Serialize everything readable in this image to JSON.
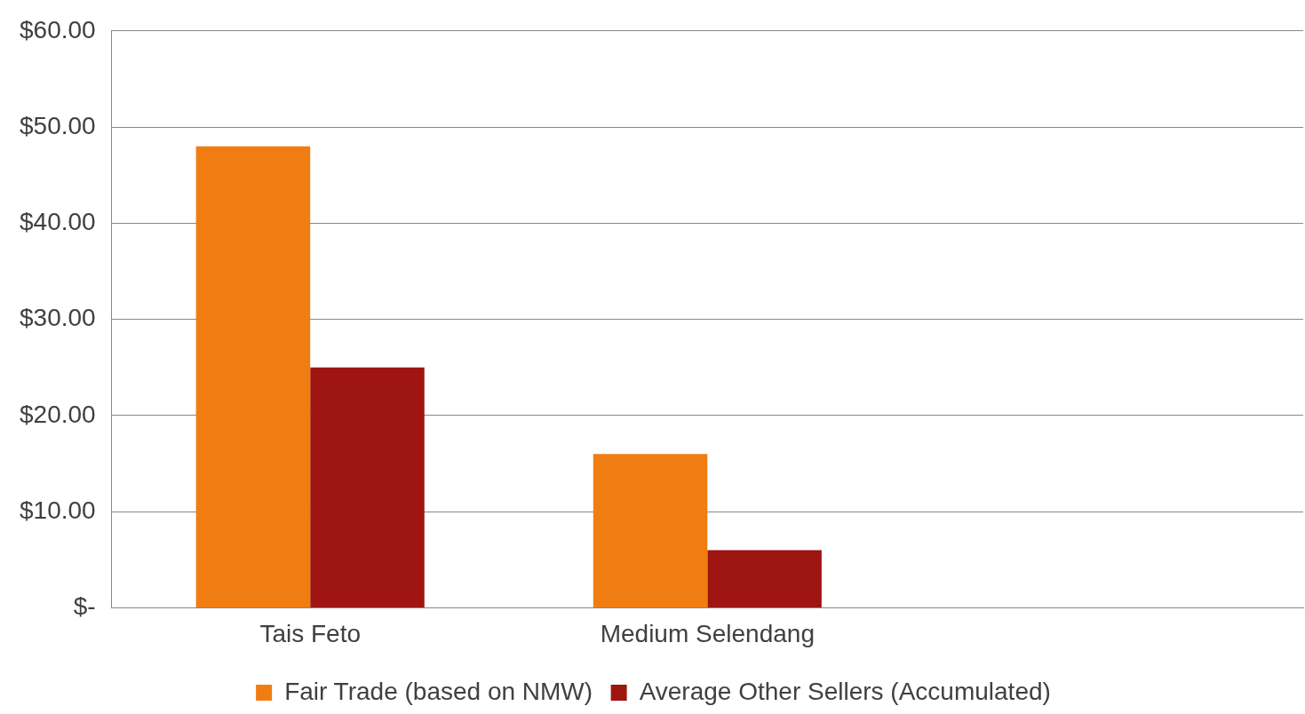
{
  "chart_data": {
    "type": "bar",
    "categories": [
      "Tais Feto",
      "Medium Selendang",
      null
    ],
    "series": [
      {
        "name": "Fair Trade (based on NMW)",
        "color": "#f07d12",
        "values": [
          48,
          16,
          null
        ]
      },
      {
        "name": "Average Other Sellers (Accumulated)",
        "color": "#9e1512",
        "values": [
          25,
          6,
          null
        ]
      }
    ],
    "ylim": [
      0,
      60
    ],
    "yticks": [
      {
        "value": 0,
        "label": "$-"
      },
      {
        "value": 10,
        "label": "$10.00"
      },
      {
        "value": 20,
        "label": "$20.00"
      },
      {
        "value": 30,
        "label": "$30.00"
      },
      {
        "value": 40,
        "label": "$40.00"
      },
      {
        "value": 50,
        "label": "$50.00"
      },
      {
        "value": 60,
        "label": "$60.00"
      }
    ],
    "grid": "y",
    "legend": "bottom"
  }
}
